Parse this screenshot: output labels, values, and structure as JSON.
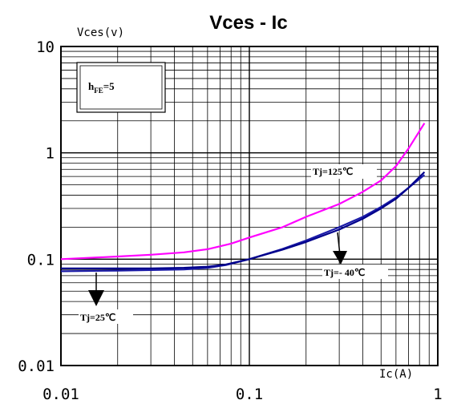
{
  "chart_data": {
    "type": "line",
    "title": "Vces - Ic",
    "xlabel": "Ic(A)",
    "ylabel": "Vces(v)",
    "xscale": "log",
    "yscale": "log",
    "xlim": [
      0.01,
      1
    ],
    "ylim": [
      0.01,
      10
    ],
    "x_ticks": [
      "0.01",
      "0.1",
      "1"
    ],
    "y_ticks": [
      "10",
      "1",
      "0.1",
      "0.01"
    ],
    "grid": true,
    "series": [
      {
        "name": "Tj=125℃",
        "color": "#ff00ff",
        "x": [
          0.01,
          0.02,
          0.03,
          0.045,
          0.06,
          0.08,
          0.1,
          0.15,
          0.2,
          0.3,
          0.4,
          0.5,
          0.6,
          0.7,
          0.85
        ],
        "y": [
          0.1,
          0.106,
          0.11,
          0.116,
          0.124,
          0.14,
          0.16,
          0.2,
          0.25,
          0.33,
          0.43,
          0.55,
          0.75,
          1.1,
          1.9
        ]
      },
      {
        "name": "Tj=25℃",
        "color": "#1a1aa8",
        "x": [
          0.01,
          0.02,
          0.03,
          0.045,
          0.06,
          0.075,
          0.1,
          0.15,
          0.2,
          0.3,
          0.4,
          0.5,
          0.6,
          0.7,
          0.85
        ],
        "y": [
          0.077,
          0.078,
          0.079,
          0.08,
          0.083,
          0.088,
          0.1,
          0.125,
          0.15,
          0.2,
          0.25,
          0.31,
          0.38,
          0.47,
          0.62
        ]
      },
      {
        "name": "Tj=- 40℃",
        "color": "#00008b",
        "x": [
          0.01,
          0.02,
          0.03,
          0.045,
          0.06,
          0.075,
          0.1,
          0.15,
          0.2,
          0.3,
          0.4,
          0.5,
          0.6,
          0.7,
          0.85
        ],
        "y": [
          0.082,
          0.082,
          0.082,
          0.083,
          0.085,
          0.089,
          0.1,
          0.123,
          0.145,
          0.19,
          0.24,
          0.3,
          0.37,
          0.47,
          0.66
        ]
      }
    ],
    "legend_box": {
      "text_main": "h",
      "text_sub": "FE",
      "text_tail": "=5"
    }
  }
}
